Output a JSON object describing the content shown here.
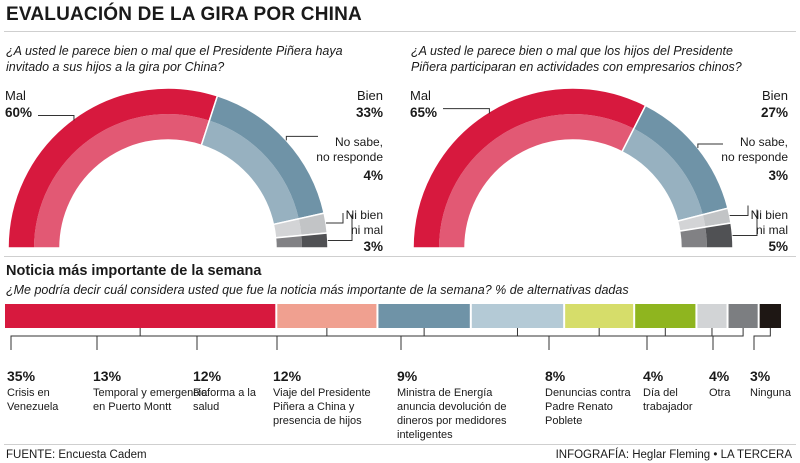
{
  "page": {
    "title": "EVALUACIÓN DE LA GIRA POR CHINA",
    "source": "FUENTE: Encuesta Cadem",
    "credit": "INFOGRAFÍA: Heglar Fleming • LA TERCERA"
  },
  "section": {
    "title": "Noticia más importante de la semana",
    "question": "¿Me podría decir cuál considera usted que fue la noticia más importante de la semana? % de alternativas dadas"
  },
  "chart_data": [
    {
      "type": "pie",
      "question": "¿A usted le parece bien o mal que el Presidente Piñera haya invitado a sus hijos a la gira por China?",
      "slices": [
        {
          "label": "Mal",
          "value": 60,
          "color": "#d7193e"
        },
        {
          "label": "Bien",
          "value": 33,
          "color": "#6f93a7"
        },
        {
          "label": "No sabe, no responde",
          "value": 4,
          "color": "#c2c4c6"
        },
        {
          "label": "Ni bien ni mal",
          "value": 3,
          "color": "#505154"
        }
      ]
    },
    {
      "type": "pie",
      "question": "¿A usted le parece bien o mal que los hijos del Presidente Piñera participaran en actividades con empresarios chinos?",
      "slices": [
        {
          "label": "Mal",
          "value": 65,
          "color": "#d7193e"
        },
        {
          "label": "Bien",
          "value": 27,
          "color": "#6f93a7"
        },
        {
          "label": "No sabe, no responde",
          "value": 3,
          "color": "#c2c4c6"
        },
        {
          "label": "Ni bien ni mal",
          "value": 5,
          "color": "#505154"
        }
      ]
    },
    {
      "type": "bar",
      "orientation": "stacked-horizontal",
      "categories": [
        "Crisis en Venezuela",
        "Temporal y emergencia en Puerto Montt",
        "Reforma a la salud",
        "Viaje del Presidente Piñera a China y presencia de hijos",
        "Ministra de Energía anuncia devolución de dineros por medidores inteligentes",
        "Denuncias contra Padre Renato Poblete",
        "Día del trabajador",
        "Otra",
        "Ninguna"
      ],
      "values": [
        35,
        13,
        12,
        12,
        9,
        8,
        4,
        4,
        3
      ],
      "colors": [
        "#d7193e",
        "#f0a090",
        "#6f93a7",
        "#b4cad6",
        "#d6dd6a",
        "#8fb51f",
        "#d2d4d6",
        "#7c7e81",
        "#1e1714"
      ]
    }
  ]
}
